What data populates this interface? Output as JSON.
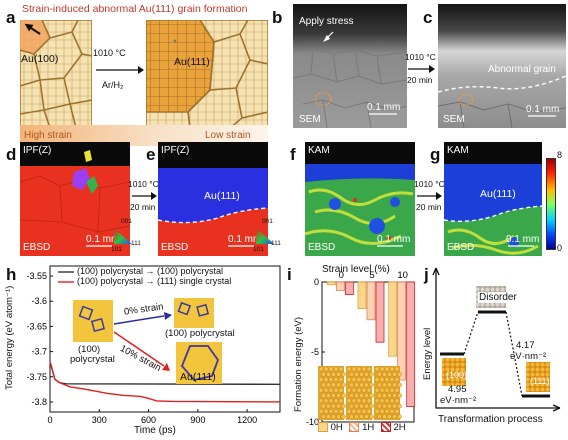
{
  "panel_a": {
    "label": "a",
    "title": "Strain-induced  abnormal Au(111) grain formation",
    "left_grain": "Au(100)",
    "right_grain": "Au(111)",
    "cond_temp": "1010 °C",
    "cond_gas": "Ar/H₂",
    "high_strain": "High strain",
    "low_strain": "Low strain",
    "colors": {
      "grain_light": "#f6e3b4",
      "grain_dark": "#e9a33a",
      "line": "#a0732c",
      "title": "#c0392b"
    }
  },
  "panel_b": {
    "label": "b",
    "annotation": "Apply stress",
    "corner": "SEM",
    "scale": "0.1 mm"
  },
  "panel_bc_arrow": {
    "temp": "1010 °C",
    "time": "20 min"
  },
  "panel_c": {
    "label": "c",
    "annotation": "Abnormal grain",
    "corner": "SEM",
    "scale": "0.1 mm"
  },
  "panel_d": {
    "label": "d",
    "mode": "IPF(Z)",
    "corner": "EBSD",
    "scale": "0.1 mm",
    "key": [
      "001",
      "101",
      "111"
    ]
  },
  "panel_de_arrow": {
    "temp": "1010 °C",
    "time": "20 min"
  },
  "panel_e": {
    "label": "e",
    "mode": "IPF(Z)",
    "grain": "Au(111)",
    "corner": "EBSD",
    "scale": "0.1 mm",
    "key": [
      "001",
      "101",
      "111"
    ]
  },
  "panel_f": {
    "label": "f",
    "mode": "KAM",
    "corner": "EBSD",
    "scale": "0.1 mm"
  },
  "panel_fg_arrow": {
    "temp": "1010 °C",
    "time": "20 min"
  },
  "panel_g": {
    "label": "g",
    "mode": "KAM",
    "grain": "Au(111)",
    "corner": "EBSD",
    "scale": "0.1 mm",
    "colorbar": {
      "max": "8",
      "min": "0"
    }
  },
  "panel_h": {
    "label": "h",
    "ylabel": "Total energy (eV  atom⁻¹)",
    "xlabel": "Time (ps)",
    "legend": [
      "(100) polycrystal → (100) polycrystal",
      "(100) polycrystal → (111) single crystal"
    ],
    "inset_start": [
      "(100)",
      "polycrystal"
    ],
    "inset_top_arrow": "0% strain",
    "inset_top_end": "(100) polycrystal",
    "inset_bottom_arrow": "10% strain",
    "inset_bottom_end": "Au(111)",
    "colors": {
      "series1": "#333333",
      "series2": "#e02020",
      "inset_fill": "#f2c53d",
      "inset_edge": "#3a3aa0"
    }
  },
  "panel_i": {
    "label": "i",
    "top_axis_label": "Strain level (%)",
    "ylabel": "Formation energy (eV)",
    "legend": [
      "0H",
      "1H",
      "2H"
    ],
    "colors": {
      "0H": "#f7d88a",
      "1H": "#f4b183",
      "2H": "#e03030"
    }
  },
  "panel_j": {
    "label": "j",
    "ylabel": "Energy level",
    "xlabel": "Transformation process",
    "disorder": "Disorder",
    "left_state": "(100)",
    "right_state": "(111)",
    "left_energy": [
      "4.95",
      "eV·nm⁻²"
    ],
    "right_energy": [
      "4.17",
      "eV·nm⁻²"
    ]
  },
  "chart_data": [
    {
      "type": "line",
      "panel": "h",
      "xlabel": "Time (ps)",
      "ylabel": "Total energy (eV  atom⁻¹)",
      "xlim": [
        0,
        1400
      ],
      "ylim": [
        -3.82,
        -3.53
      ],
      "xticks": [
        0,
        300,
        600,
        900,
        1200
      ],
      "yticks": [
        -3.55,
        -3.6,
        -3.65,
        -3.7,
        -3.75,
        -3.8
      ],
      "series": [
        {
          "name": "(100) polycrystal → (100) polycrystal",
          "color": "#333333",
          "x": [
            0,
            30,
            60,
            100,
            1400
          ],
          "y": [
            -3.72,
            -3.755,
            -3.762,
            -3.764,
            -3.765
          ]
        },
        {
          "name": "(100) polycrystal → (111) single crystal",
          "color": "#e02020",
          "x": [
            0,
            30,
            60,
            120,
            200,
            270,
            350,
            450,
            550,
            600,
            650,
            750,
            1400
          ],
          "y": [
            -3.72,
            -3.755,
            -3.762,
            -3.77,
            -3.774,
            -3.778,
            -3.783,
            -3.787,
            -3.789,
            -3.793,
            -3.798,
            -3.799,
            -3.8
          ]
        }
      ]
    },
    {
      "type": "bar",
      "panel": "i",
      "categories": [
        "0",
        "5",
        "10"
      ],
      "xlabel": "Strain level (%)",
      "ylabel": "Formation energy (eV)",
      "ylim": [
        -10,
        0
      ],
      "yticks": [
        0,
        -5,
        -10
      ],
      "series": [
        {
          "name": "0H",
          "values": [
            -0.2,
            -1.9,
            -5.3
          ]
        },
        {
          "name": "1H",
          "values": [
            -0.6,
            -2.7,
            -7.0
          ]
        },
        {
          "name": "2H",
          "values": [
            -0.9,
            -4.3,
            -8.9
          ]
        }
      ]
    }
  ]
}
